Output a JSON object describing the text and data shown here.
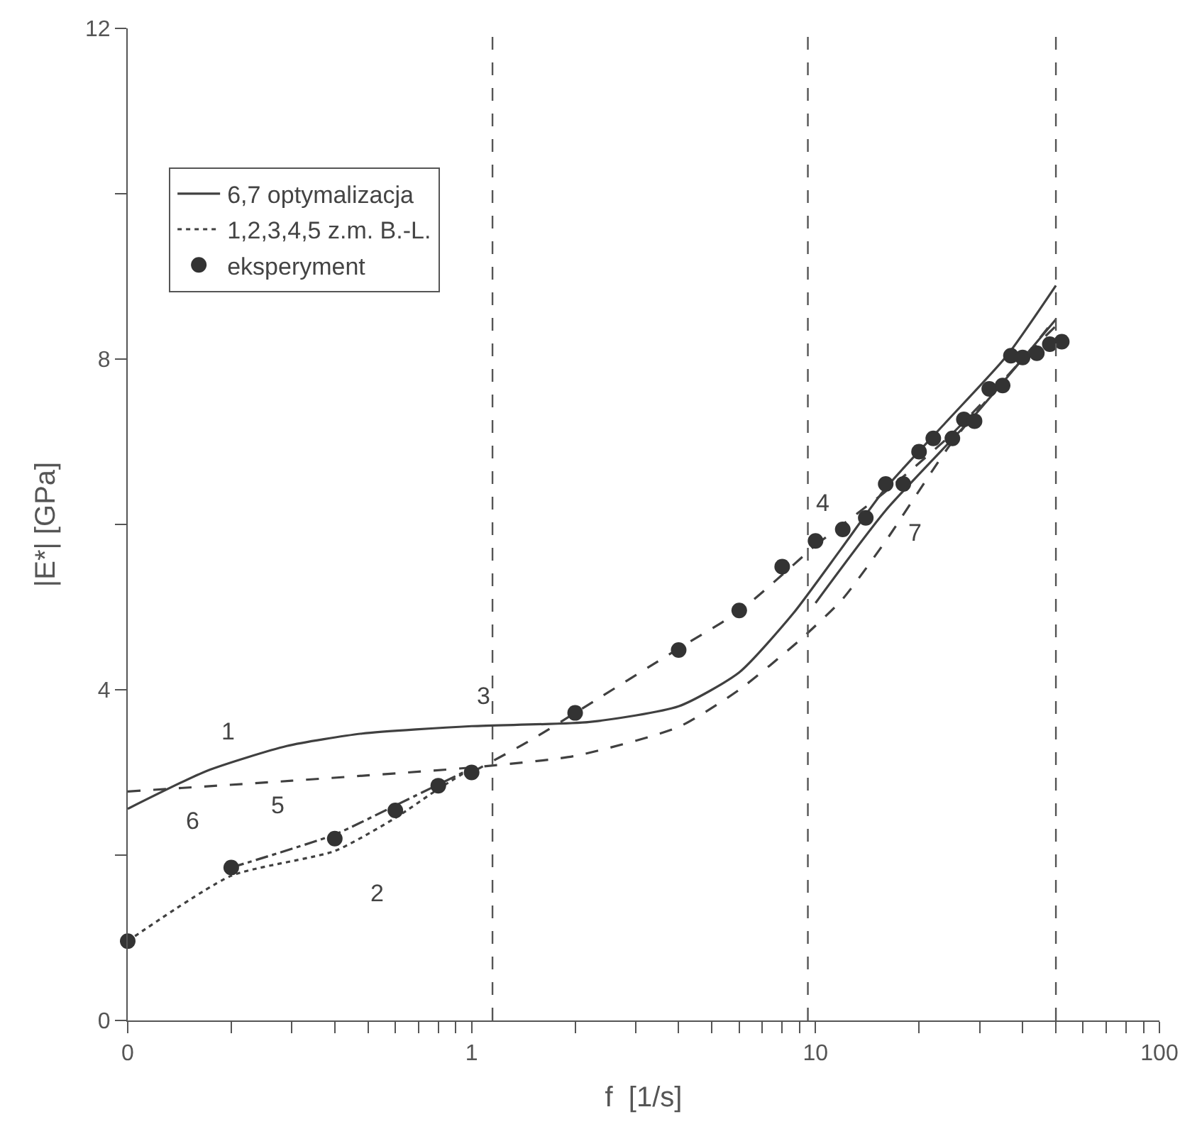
{
  "chart_data": {
    "type": "line",
    "xlabel": "f  [1/s]",
    "ylabel": "|E*| [GPa]",
    "log": "x",
    "xlim": [
      0.1,
      100
    ],
    "xticks": [
      {
        "value": 0.1,
        "label": "0"
      },
      {
        "value": 0.2,
        "label": null
      },
      {
        "value": 0.3,
        "label": null
      },
      {
        "value": 0.4,
        "label": null
      },
      {
        "value": 0.5,
        "label": null
      },
      {
        "value": 0.6,
        "label": null
      },
      {
        "value": 0.7,
        "label": null
      },
      {
        "value": 0.8,
        "label": null
      },
      {
        "value": 0.9,
        "label": null
      },
      1,
      {
        "value": 2,
        "label": null
      },
      {
        "value": 3,
        "label": null
      },
      {
        "value": 4,
        "label": null
      },
      {
        "value": 5,
        "label": null
      },
      {
        "value": 6,
        "label": null
      },
      {
        "value": 7,
        "label": null
      },
      {
        "value": 8,
        "label": null
      },
      {
        "value": 9,
        "label": null
      },
      10,
      {
        "value": 20,
        "label": null
      },
      {
        "value": 30,
        "label": null
      },
      {
        "value": 40,
        "label": null
      },
      {
        "value": 50,
        "label": null
      },
      {
        "value": 60,
        "label": null
      },
      {
        "value": 70,
        "label": null
      },
      {
        "value": 80,
        "label": null
      },
      {
        "value": 90,
        "label": null
      },
      100
    ],
    "ylim": [
      0,
      12
    ],
    "yticks": [
      0,
      {
        "value": 2,
        "label": null
      },
      4,
      {
        "value": 6,
        "label": null
      },
      8,
      {
        "value": 10,
        "label": null
      },
      12
    ],
    "legend": "top left",
    "series": [
      {
        "name": "6,7 optymalizacja",
        "line_style": "solid",
        "marker": "none",
        "color": "#404040",
        "x": [
          0.1,
          0.17,
          0.29,
          0.48,
          1,
          2.2,
          4,
          6,
          8.6,
          11.8,
          16,
          24,
          36,
          50
        ],
        "values": [
          2.56,
          3.02,
          3.32,
          3.47,
          3.56,
          3.61,
          3.8,
          4.21,
          4.92,
          5.69,
          6.44,
          7.24,
          8.04,
          8.89
        ]
      },
      {
        "line_style": "solid",
        "marker": "none",
        "color": "#404040",
        "x": [
          10,
          16,
          29,
          50
        ],
        "values": [
          5.05,
          6.17,
          7.32,
          8.48
        ]
      },
      {
        "name": "1,2,3,4,5 z.m. B.-L.",
        "line_style": "dotted",
        "marker": "none",
        "color": "#404040",
        "x": [
          0.1,
          0.2,
          0.4,
          0.6,
          0.8,
          1
        ],
        "values": [
          0.96,
          1.75,
          2.05,
          2.45,
          2.8,
          3.05
        ]
      },
      {
        "line_style": "dashed",
        "marker": "none",
        "color": "#404040",
        "x": [
          0.1,
          0.3,
          1,
          2,
          4,
          6,
          9,
          12,
          16,
          25,
          40,
          50
        ],
        "values": [
          2.77,
          2.9,
          3.06,
          3.2,
          3.55,
          4.0,
          4.6,
          5.1,
          5.8,
          7.0,
          8.0,
          8.4
        ]
      },
      {
        "line_style": "dashed",
        "marker": "none",
        "color": "#404040",
        "x": [
          1,
          1.5,
          2,
          4,
          6,
          10
        ],
        "values": [
          3.0,
          3.4,
          3.72,
          4.5,
          4.95,
          5.75
        ]
      },
      {
        "line_style": "dashed",
        "marker": "none",
        "color": "#404040",
        "x": [
          10,
          16,
          25,
          40,
          50
        ],
        "values": [
          5.75,
          6.4,
          7.1,
          8.0,
          8.5
        ]
      },
      {
        "line_style": "dashdot",
        "marker": "none",
        "color": "#404040",
        "x": [
          0.2,
          0.4,
          0.6,
          1
        ],
        "values": [
          1.85,
          2.25,
          2.6,
          3.05
        ]
      },
      {
        "name": "eksperyment",
        "type": "scatter",
        "marker": "circle",
        "color": "#333333",
        "x": [
          0.1,
          0.2,
          0.4,
          0.6,
          0.8,
          1,
          2,
          4,
          6,
          8,
          10,
          12,
          14,
          16,
          18,
          20,
          22,
          25,
          27,
          29,
          32,
          35,
          37,
          40,
          44,
          48,
          52
        ],
        "values": [
          0.96,
          1.85,
          2.2,
          2.54,
          2.84,
          3.0,
          3.72,
          4.48,
          4.96,
          5.49,
          5.8,
          5.94,
          6.08,
          6.49,
          6.49,
          6.88,
          7.04,
          7.04,
          7.27,
          7.25,
          7.64,
          7.68,
          8.04,
          8.02,
          8.07,
          8.18,
          8.21
        ]
      }
    ],
    "ref_lines": [
      {
        "axis": "x",
        "value": 1.15,
        "line_style": "dashed",
        "color": "#555555"
      },
      {
        "axis": "x",
        "value": 9.5,
        "line_style": "dashed",
        "color": "#555555"
      },
      {
        "axis": "x",
        "value": 50,
        "line_style": "dashed",
        "color": "#555555"
      }
    ],
    "annotations": [
      {
        "text": "1",
        "x": 0.3,
        "y": 2.9
      },
      {
        "text": "2",
        "x": 0.4,
        "y": 2.05
      },
      {
        "text": "3",
        "x": 1.5,
        "y": 3.4
      },
      {
        "text": "4",
        "x": 10,
        "y": 5.75
      },
      {
        "text": "5",
        "x": 0.4,
        "y": 2.25
      },
      {
        "text": "6",
        "x": 0.17,
        "y": 3.02
      },
      {
        "text": "7",
        "x": 16,
        "y": 6.17
      }
    ]
  }
}
